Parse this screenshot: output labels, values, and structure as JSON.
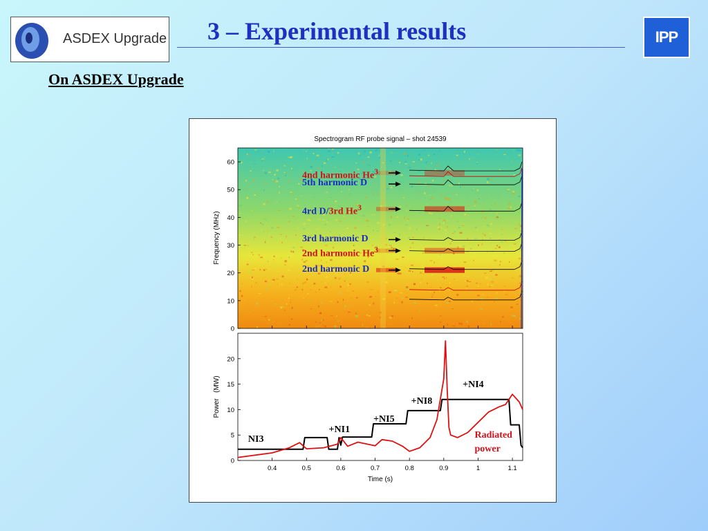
{
  "header": {
    "logo_text": "ASDEX Upgrade",
    "title": "3 – Experimental results",
    "ipp_logo": "IPP"
  },
  "subtitle": "On ASDEX Upgrade",
  "colors": {
    "title": "#1f2fbf",
    "label_blue": "#1a2fbf",
    "label_red": "#d0121b"
  },
  "chart_data": [
    {
      "type": "heatmap",
      "title": "Spectrogram RF probe signal – shot 24539",
      "ylabel": "Frequency (MHz)",
      "ylim": [
        0,
        65
      ],
      "yticks": [
        "0",
        "10",
        "20",
        "30",
        "40",
        "50",
        "60"
      ],
      "annotations": [
        {
          "text": "4nd harmonic He",
          "sup": "3",
          "color": "red",
          "freq": 56
        },
        {
          "text": "5th harmonic D",
          "sup": "",
          "color": "blue",
          "freq": 52
        },
        {
          "text": "4rd  D/",
          "text2": "3rd He",
          "sup": "3",
          "color": "blue",
          "freq": 43
        },
        {
          "text": "3rd harmonic D",
          "sup": "",
          "color": "blue",
          "freq": 32
        },
        {
          "text": "2nd harmonic He",
          "sup": "3",
          "color": "red",
          "freq": 28
        },
        {
          "text": "2nd harmonic D",
          "sup": "",
          "color": "blue",
          "freq": 21
        }
      ]
    },
    {
      "type": "line",
      "xlabel": "Time (s)",
      "ylabel": "Power   (MW)",
      "xlim": [
        0.3,
        1.13
      ],
      "ylim": [
        0,
        25
      ],
      "xticks": [
        "0.4",
        "0.5",
        "0.6",
        "0.7",
        "0.8",
        "0.9",
        "1",
        "1.1"
      ],
      "yticks": [
        "0",
        "5",
        "10",
        "15",
        "20"
      ],
      "series": [
        {
          "color": "#000000",
          "x": [
            0.3,
            0.49,
            0.495,
            0.56,
            0.565,
            0.59,
            0.595,
            0.6,
            0.605,
            0.69,
            0.695,
            0.79,
            0.795,
            0.89,
            0.895,
            1.09,
            1.095,
            1.12,
            1.125,
            1.13
          ],
          "y": [
            2.2,
            2.2,
            4.5,
            4.5,
            2.2,
            2.2,
            4.5,
            3.0,
            4.6,
            4.6,
            7.2,
            7.2,
            9.8,
            9.8,
            12.0,
            12.0,
            7.0,
            7.0,
            3.0,
            2.5
          ]
        },
        {
          "color": "#e01010",
          "x": [
            0.3,
            0.4,
            0.45,
            0.48,
            0.5,
            0.55,
            0.59,
            0.6,
            0.62,
            0.65,
            0.7,
            0.72,
            0.75,
            0.78,
            0.8,
            0.83,
            0.86,
            0.88,
            0.9,
            0.905,
            0.91,
            0.915,
            0.92,
            0.94,
            0.97,
            1.0,
            1.03,
            1.06,
            1.08,
            1.1,
            1.12,
            1.13
          ],
          "y": [
            0.6,
            1.5,
            2.5,
            3.5,
            2.3,
            2.5,
            3.2,
            4.5,
            2.8,
            3.6,
            2.9,
            4.1,
            3.8,
            2.8,
            1.8,
            2.5,
            4.5,
            8.0,
            16.0,
            23.5,
            14.0,
            6.5,
            5.0,
            4.5,
            5.5,
            7.5,
            9.5,
            10.5,
            11.0,
            13.0,
            11.5,
            10.0
          ]
        }
      ],
      "annotations": [
        {
          "text": "NI3",
          "color": "black",
          "x": 0.33,
          "y": 4.0
        },
        {
          "text": "+NI1",
          "color": "black",
          "x": 0.565,
          "y": 5.9
        },
        {
          "text": "+NI5",
          "color": "black",
          "x": 0.695,
          "y": 7.9
        },
        {
          "text": "+NI8",
          "color": "black",
          "x": 0.805,
          "y": 11.4
        },
        {
          "text": "+NI4",
          "color": "black",
          "x": 0.955,
          "y": 14.7
        },
        {
          "text": "Radiated power",
          "color": "red",
          "x": 0.99,
          "y": 5.0
        }
      ]
    }
  ]
}
